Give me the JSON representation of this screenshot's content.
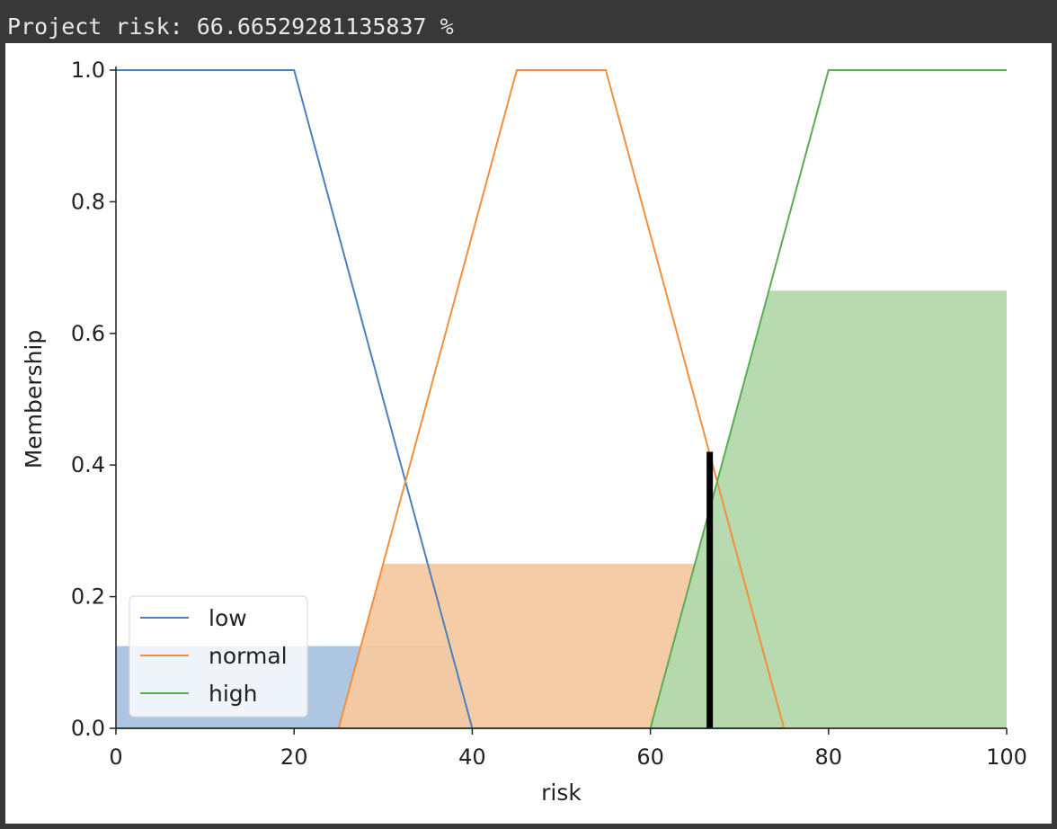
{
  "output": {
    "text": "Project risk: 66.66529281135837 %"
  },
  "colors": {
    "low": "#4c7fbd",
    "normal": "#f28f3b",
    "high": "#5aad52",
    "low_fill": "#a9c4e1",
    "normal_fill": "#f5c9a1",
    "high_fill": "#b3d8ac",
    "result": "#000000"
  },
  "chart_data": {
    "type": "line",
    "xlabel": "risk",
    "ylabel": "Membership",
    "xlim": [
      0,
      100
    ],
    "ylim": [
      0,
      1
    ],
    "xticks": [
      0,
      20,
      40,
      60,
      80,
      100
    ],
    "yticks": [
      0.0,
      0.2,
      0.4,
      0.6,
      0.8,
      1.0
    ],
    "ytick_labels": [
      "0.0",
      "0.2",
      "0.4",
      "0.6",
      "0.8",
      "1.0"
    ],
    "legend_position": "bottom-left",
    "series": [
      {
        "name": "low",
        "color_key": "low",
        "points": [
          [
            0,
            1
          ],
          [
            20,
            1
          ],
          [
            40,
            0
          ],
          [
            100,
            0
          ]
        ]
      },
      {
        "name": "normal",
        "color_key": "normal",
        "points": [
          [
            0,
            0
          ],
          [
            25,
            0
          ],
          [
            45,
            1
          ],
          [
            55,
            1
          ],
          [
            75,
            0
          ],
          [
            100,
            0
          ]
        ]
      },
      {
        "name": "high",
        "color_key": "high",
        "points": [
          [
            0,
            0
          ],
          [
            60,
            0
          ],
          [
            80,
            1
          ],
          [
            100,
            1
          ]
        ]
      }
    ],
    "activations": [
      {
        "name": "low",
        "level": 0.125,
        "color_key": "low_fill"
      },
      {
        "name": "normal",
        "level": 0.25,
        "color_key": "normal_fill"
      },
      {
        "name": "high",
        "level": 0.665,
        "color_key": "high_fill"
      }
    ],
    "result": {
      "x": 66.665,
      "height": 0.42
    }
  }
}
